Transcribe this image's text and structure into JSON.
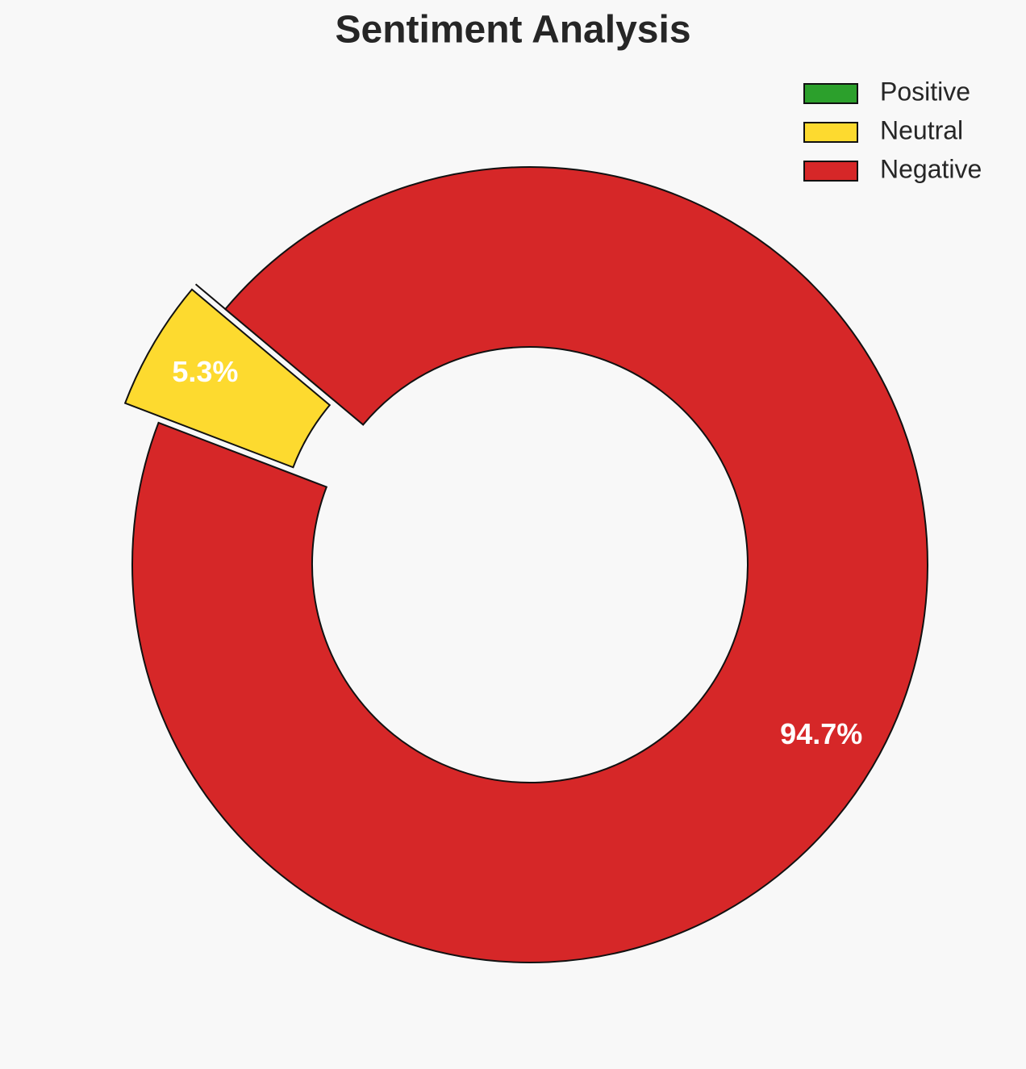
{
  "chart_data": {
    "type": "donut",
    "title": "Sentiment Analysis",
    "categories": [
      "Positive",
      "Neutral",
      "Negative"
    ],
    "values": [
      0,
      5.3,
      94.7
    ],
    "value_labels": [
      null,
      "5.3%",
      "94.7%"
    ],
    "colors": [
      "#2ca02c",
      "#fdda2f",
      "#d62728"
    ],
    "legend": "upper right"
  }
}
